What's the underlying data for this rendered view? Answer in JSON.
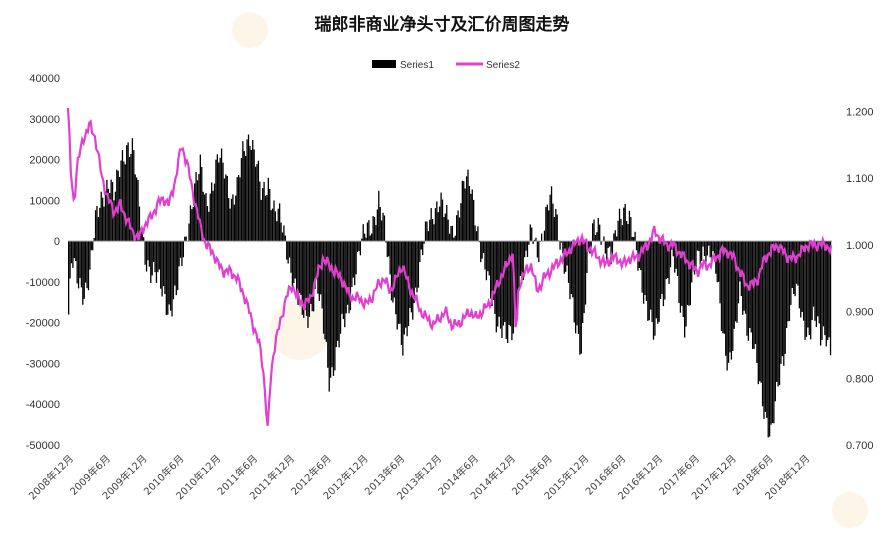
{
  "chart_data": {
    "type": "bar+line",
    "title": "瑞郎非商业净头寸及汇价周图走势",
    "legend": {
      "placement": "top-center",
      "entries": [
        {
          "name": "Series1",
          "color": "#000000",
          "kind": "bar"
        },
        {
          "name": "Series2",
          "color": "#e040d0",
          "kind": "line"
        }
      ]
    },
    "grid": false,
    "left_axis": {
      "ylim": [
        -50000,
        40000
      ],
      "ticks": [
        "40000",
        "30000",
        "20000",
        "10000",
        "0",
        "-10000",
        "-20000",
        "-30000",
        "-40000",
        "-50000"
      ],
      "tick_values": [
        40000,
        30000,
        20000,
        10000,
        0,
        -10000,
        -20000,
        -30000,
        -40000,
        -50000
      ]
    },
    "right_axis": {
      "ylim": [
        0.7,
        1.25
      ],
      "ticks": [
        "1.200",
        "1.100",
        "1.000",
        "0.900",
        "0.800",
        "0.700"
      ],
      "tick_values": [
        1.2,
        1.1,
        1.0,
        0.9,
        0.8,
        0.7
      ]
    },
    "x_range": [
      2008.958,
      2019.333
    ],
    "x_ticks": [
      {
        "label": "2008年12月",
        "t": 2008.958
      },
      {
        "label": "2009年6月",
        "t": 2009.458
      },
      {
        "label": "2009年12月",
        "t": 2009.958
      },
      {
        "label": "2010年6月",
        "t": 2010.458
      },
      {
        "label": "2010年12月",
        "t": 2010.958
      },
      {
        "label": "2011年6月",
        "t": 2011.458
      },
      {
        "label": "2011年12月",
        "t": 2011.958
      },
      {
        "label": "2012年6月",
        "t": 2012.458
      },
      {
        "label": "2012年12月",
        "t": 2012.958
      },
      {
        "label": "2013年6月",
        "t": 2013.458
      },
      {
        "label": "2013年12月",
        "t": 2013.958
      },
      {
        "label": "2014年6月",
        "t": 2014.458
      },
      {
        "label": "2014年12月",
        "t": 2014.958
      },
      {
        "label": "2015年6月",
        "t": 2015.458
      },
      {
        "label": "2015年12月",
        "t": 2015.958
      },
      {
        "label": "2016年6月",
        "t": 2016.458
      },
      {
        "label": "2016年12月",
        "t": 2016.958
      },
      {
        "label": "2017年6月",
        "t": 2017.458
      },
      {
        "label": "2017年12月",
        "t": 2017.958
      },
      {
        "label": "2018年6月",
        "t": 2018.458
      },
      {
        "label": "2018年12月",
        "t": 2018.958
      }
    ],
    "series": [
      {
        "name": "Series1",
        "axis": "left",
        "type": "bar",
        "keypoints": [
          [
            2008.96,
            -18000
          ],
          [
            2009.0,
            -5000
          ],
          [
            2009.08,
            -10000
          ],
          [
            2009.17,
            -12000
          ],
          [
            2009.25,
            -8000
          ],
          [
            2009.33,
            5000
          ],
          [
            2009.42,
            12000
          ],
          [
            2009.5,
            15000
          ],
          [
            2009.58,
            10000
          ],
          [
            2009.67,
            20000
          ],
          [
            2009.75,
            24000
          ],
          [
            2009.83,
            22000
          ],
          [
            2009.92,
            8000
          ],
          [
            2010.0,
            -3000
          ],
          [
            2010.08,
            -8000
          ],
          [
            2010.17,
            -10000
          ],
          [
            2010.25,
            -12000
          ],
          [
            2010.33,
            -17000
          ],
          [
            2010.42,
            -14000
          ],
          [
            2010.5,
            -4000
          ],
          [
            2010.58,
            5000
          ],
          [
            2010.67,
            12000
          ],
          [
            2010.75,
            18000
          ],
          [
            2010.83,
            10000
          ],
          [
            2010.92,
            14000
          ],
          [
            2011.0,
            20000
          ],
          [
            2011.08,
            18000
          ],
          [
            2011.17,
            10000
          ],
          [
            2011.25,
            12000
          ],
          [
            2011.33,
            22000
          ],
          [
            2011.42,
            27000
          ],
          [
            2011.5,
            20000
          ],
          [
            2011.58,
            10000
          ],
          [
            2011.67,
            15000
          ],
          [
            2011.75,
            8000
          ],
          [
            2011.83,
            5000
          ],
          [
            2011.92,
            -2000
          ],
          [
            2012.0,
            -8000
          ],
          [
            2012.08,
            -15000
          ],
          [
            2012.17,
            -20000
          ],
          [
            2012.25,
            -16000
          ],
          [
            2012.33,
            -10000
          ],
          [
            2012.42,
            -22000
          ],
          [
            2012.5,
            -34000
          ],
          [
            2012.58,
            -28000
          ],
          [
            2012.67,
            -22000
          ],
          [
            2012.75,
            -18000
          ],
          [
            2012.83,
            -8000
          ],
          [
            2012.92,
            -2000
          ],
          [
            2013.0,
            2000
          ],
          [
            2013.08,
            5000
          ],
          [
            2013.17,
            10000
          ],
          [
            2013.25,
            2000
          ],
          [
            2013.33,
            -10000
          ],
          [
            2013.42,
            -18000
          ],
          [
            2013.5,
            -28000
          ],
          [
            2013.58,
            -20000
          ],
          [
            2013.67,
            -12000
          ],
          [
            2013.75,
            -4000
          ],
          [
            2013.83,
            3000
          ],
          [
            2013.92,
            8000
          ],
          [
            2014.0,
            11000
          ],
          [
            2014.08,
            5000
          ],
          [
            2014.17,
            2000
          ],
          [
            2014.25,
            8000
          ],
          [
            2014.33,
            14000
          ],
          [
            2014.42,
            13000
          ],
          [
            2014.5,
            5000
          ],
          [
            2014.58,
            -5000
          ],
          [
            2014.67,
            -12000
          ],
          [
            2014.75,
            -18000
          ],
          [
            2014.83,
            -20000
          ],
          [
            2014.92,
            -25000
          ],
          [
            2015.0,
            -22000
          ],
          [
            2015.08,
            -10000
          ],
          [
            2015.17,
            -5000
          ],
          [
            2015.25,
            2000
          ],
          [
            2015.33,
            -2000
          ],
          [
            2015.42,
            4000
          ],
          [
            2015.5,
            10000
          ],
          [
            2015.58,
            7000
          ],
          [
            2015.67,
            -3000
          ],
          [
            2015.75,
            -12000
          ],
          [
            2015.83,
            -20000
          ],
          [
            2015.92,
            -25000
          ],
          [
            2016.0,
            -8000
          ],
          [
            2016.08,
            2000
          ],
          [
            2016.17,
            5000
          ],
          [
            2016.25,
            -2000
          ],
          [
            2016.33,
            -6000
          ],
          [
            2016.42,
            6000
          ],
          [
            2016.5,
            9000
          ],
          [
            2016.58,
            4000
          ],
          [
            2016.67,
            -3000
          ],
          [
            2016.75,
            -10000
          ],
          [
            2016.83,
            -18000
          ],
          [
            2016.92,
            -25000
          ],
          [
            2017.0,
            -14000
          ],
          [
            2017.08,
            -10000
          ],
          [
            2017.17,
            -5000
          ],
          [
            2017.25,
            -14000
          ],
          [
            2017.33,
            -20000
          ],
          [
            2017.42,
            -12000
          ],
          [
            2017.5,
            -5000
          ],
          [
            2017.58,
            -2000
          ],
          [
            2017.67,
            -3000
          ],
          [
            2017.75,
            -8000
          ],
          [
            2017.83,
            -20000
          ],
          [
            2017.92,
            -30000
          ],
          [
            2018.0,
            -25000
          ],
          [
            2018.08,
            -12000
          ],
          [
            2018.17,
            -20000
          ],
          [
            2018.25,
            -25000
          ],
          [
            2018.33,
            -35000
          ],
          [
            2018.42,
            -42000
          ],
          [
            2018.5,
            -47000
          ],
          [
            2018.58,
            -38000
          ],
          [
            2018.67,
            -28000
          ],
          [
            2018.75,
            -15000
          ],
          [
            2018.83,
            -12000
          ],
          [
            2018.92,
            -20000
          ],
          [
            2019.0,
            -22000
          ],
          [
            2019.08,
            -18000
          ],
          [
            2019.17,
            -25000
          ],
          [
            2019.25,
            -22000
          ],
          [
            2019.33,
            -27000
          ]
        ]
      },
      {
        "name": "Series2",
        "axis": "right",
        "type": "line",
        "color": "#e040d0",
        "keypoints": [
          [
            2008.96,
            1.205
          ],
          [
            2009.0,
            1.1
          ],
          [
            2009.04,
            1.06
          ],
          [
            2009.08,
            1.12
          ],
          [
            2009.17,
            1.16
          ],
          [
            2009.25,
            1.18
          ],
          [
            2009.33,
            1.16
          ],
          [
            2009.42,
            1.1
          ],
          [
            2009.5,
            1.07
          ],
          [
            2009.58,
            1.05
          ],
          [
            2009.67,
            1.06
          ],
          [
            2009.75,
            1.04
          ],
          [
            2009.83,
            1.02
          ],
          [
            2009.92,
            1.01
          ],
          [
            2010.0,
            1.03
          ],
          [
            2010.08,
            1.04
          ],
          [
            2010.17,
            1.06
          ],
          [
            2010.25,
            1.07
          ],
          [
            2010.33,
            1.06
          ],
          [
            2010.42,
            1.1
          ],
          [
            2010.5,
            1.15
          ],
          [
            2010.58,
            1.12
          ],
          [
            2010.67,
            1.07
          ],
          [
            2010.75,
            1.03
          ],
          [
            2010.83,
            1.0
          ],
          [
            2010.92,
            0.99
          ],
          [
            2011.0,
            0.97
          ],
          [
            2011.08,
            0.96
          ],
          [
            2011.17,
            0.96
          ],
          [
            2011.25,
            0.95
          ],
          [
            2011.33,
            0.93
          ],
          [
            2011.42,
            0.9
          ],
          [
            2011.5,
            0.87
          ],
          [
            2011.58,
            0.84
          ],
          [
            2011.62,
            0.8
          ],
          [
            2011.67,
            0.72
          ],
          [
            2011.71,
            0.8
          ],
          [
            2011.75,
            0.84
          ],
          [
            2011.83,
            0.88
          ],
          [
            2011.92,
            0.92
          ],
          [
            2012.0,
            0.94
          ],
          [
            2012.08,
            0.92
          ],
          [
            2012.17,
            0.91
          ],
          [
            2012.25,
            0.92
          ],
          [
            2012.33,
            0.95
          ],
          [
            2012.42,
            0.98
          ],
          [
            2012.5,
            0.97
          ],
          [
            2012.58,
            0.96
          ],
          [
            2012.67,
            0.95
          ],
          [
            2012.75,
            0.93
          ],
          [
            2012.83,
            0.92
          ],
          [
            2012.92,
            0.92
          ],
          [
            2013.0,
            0.91
          ],
          [
            2013.08,
            0.92
          ],
          [
            2013.17,
            0.94
          ],
          [
            2013.25,
            0.95
          ],
          [
            2013.33,
            0.93
          ],
          [
            2013.42,
            0.95
          ],
          [
            2013.5,
            0.97
          ],
          [
            2013.58,
            0.94
          ],
          [
            2013.67,
            0.92
          ],
          [
            2013.75,
            0.9
          ],
          [
            2013.83,
            0.89
          ],
          [
            2013.92,
            0.88
          ],
          [
            2014.0,
            0.89
          ],
          [
            2014.08,
            0.9
          ],
          [
            2014.17,
            0.88
          ],
          [
            2014.25,
            0.88
          ],
          [
            2014.33,
            0.89
          ],
          [
            2014.42,
            0.9
          ],
          [
            2014.5,
            0.89
          ],
          [
            2014.58,
            0.9
          ],
          [
            2014.67,
            0.91
          ],
          [
            2014.75,
            0.93
          ],
          [
            2014.83,
            0.95
          ],
          [
            2014.92,
            0.97
          ],
          [
            2015.0,
            0.99
          ],
          [
            2015.04,
            0.86
          ],
          [
            2015.08,
            0.94
          ],
          [
            2015.17,
            0.96
          ],
          [
            2015.25,
            0.97
          ],
          [
            2015.33,
            0.93
          ],
          [
            2015.42,
            0.95
          ],
          [
            2015.5,
            0.96
          ],
          [
            2015.58,
            0.97
          ],
          [
            2015.67,
            0.98
          ],
          [
            2015.75,
            0.99
          ],
          [
            2015.83,
            1.0
          ],
          [
            2015.92,
            1.01
          ],
          [
            2016.0,
            1.0
          ],
          [
            2016.08,
            0.99
          ],
          [
            2016.17,
            0.98
          ],
          [
            2016.25,
            0.97
          ],
          [
            2016.33,
            0.98
          ],
          [
            2016.42,
            0.98
          ],
          [
            2016.5,
            0.97
          ],
          [
            2016.58,
            0.98
          ],
          [
            2016.67,
            0.98
          ],
          [
            2016.75,
            0.99
          ],
          [
            2016.83,
            1.0
          ],
          [
            2016.92,
            1.02
          ],
          [
            2017.0,
            1.01
          ],
          [
            2017.08,
            1.0
          ],
          [
            2017.17,
            1.0
          ],
          [
            2017.25,
            0.99
          ],
          [
            2017.33,
            0.98
          ],
          [
            2017.42,
            0.97
          ],
          [
            2017.5,
            0.96
          ],
          [
            2017.58,
            0.97
          ],
          [
            2017.67,
            0.97
          ],
          [
            2017.75,
            0.98
          ],
          [
            2017.83,
            0.99
          ],
          [
            2017.92,
            0.99
          ],
          [
            2018.0,
            0.98
          ],
          [
            2018.08,
            0.96
          ],
          [
            2018.17,
            0.94
          ],
          [
            2018.25,
            0.94
          ],
          [
            2018.33,
            0.95
          ],
          [
            2018.42,
            0.98
          ],
          [
            2018.5,
            0.99
          ],
          [
            2018.58,
            1.0
          ],
          [
            2018.67,
            0.99
          ],
          [
            2018.75,
            0.98
          ],
          [
            2018.83,
            0.98
          ],
          [
            2018.92,
            0.99
          ],
          [
            2019.0,
            1.0
          ],
          [
            2019.08,
            1.0
          ],
          [
            2019.17,
            1.0
          ],
          [
            2019.25,
            1.0
          ],
          [
            2019.33,
            0.99
          ]
        ]
      }
    ]
  }
}
